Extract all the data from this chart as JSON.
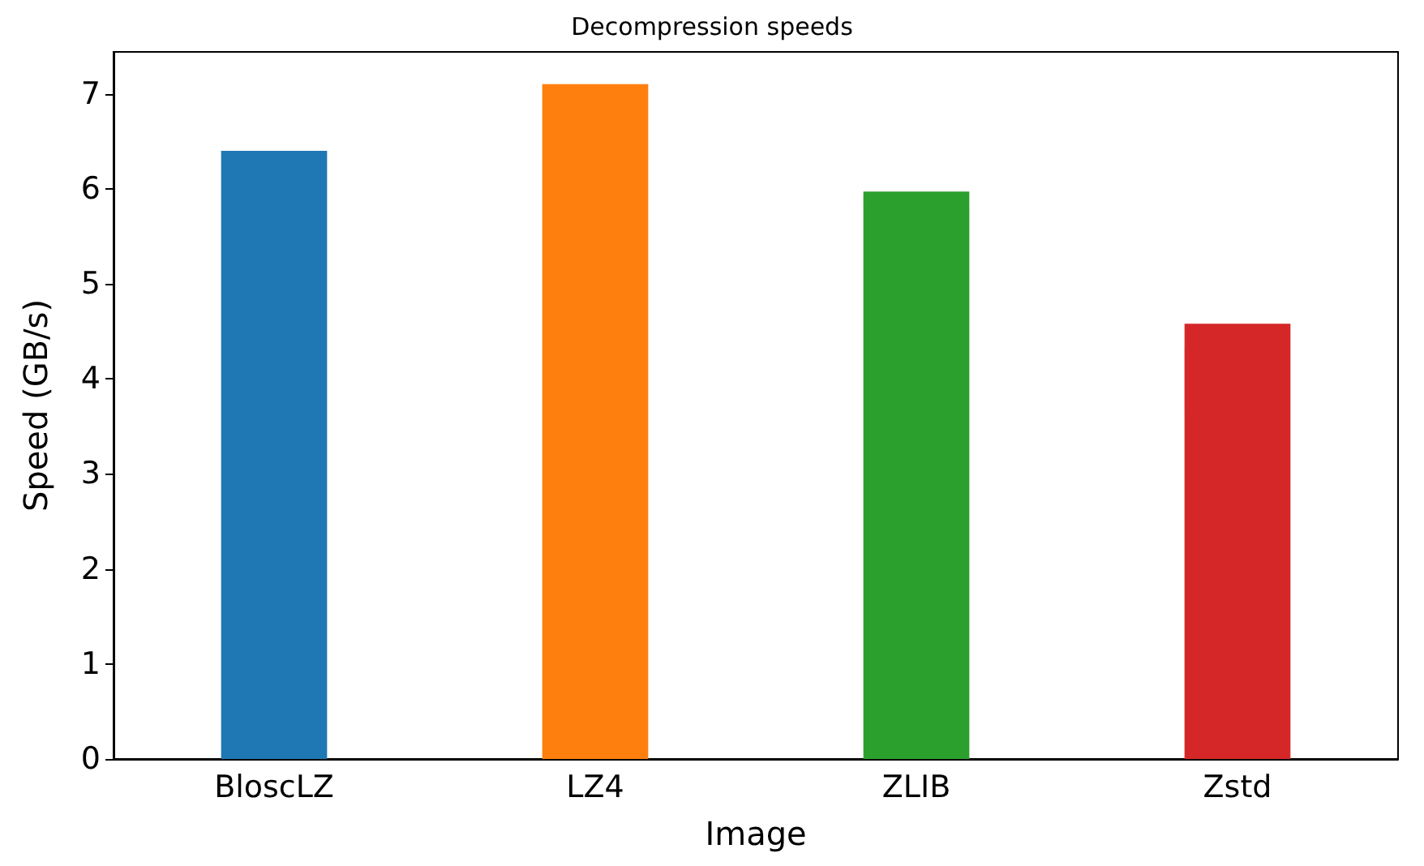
{
  "chart_data": {
    "type": "bar",
    "title": "Decompression speeds",
    "xlabel": "Image",
    "ylabel": "Speed (GB/s)",
    "categories": [
      "BloscLZ",
      "LZ4",
      "ZLIB",
      "Zstd"
    ],
    "values": [
      6.4,
      7.1,
      5.97,
      4.58
    ],
    "colors": [
      "#1f77b4",
      "#ff7f0e",
      "#2ca02c",
      "#d62728"
    ],
    "ylim": [
      0,
      7.44
    ],
    "yticks": [
      0,
      1,
      2,
      3,
      4,
      5,
      6,
      7
    ],
    "grid": false
  }
}
